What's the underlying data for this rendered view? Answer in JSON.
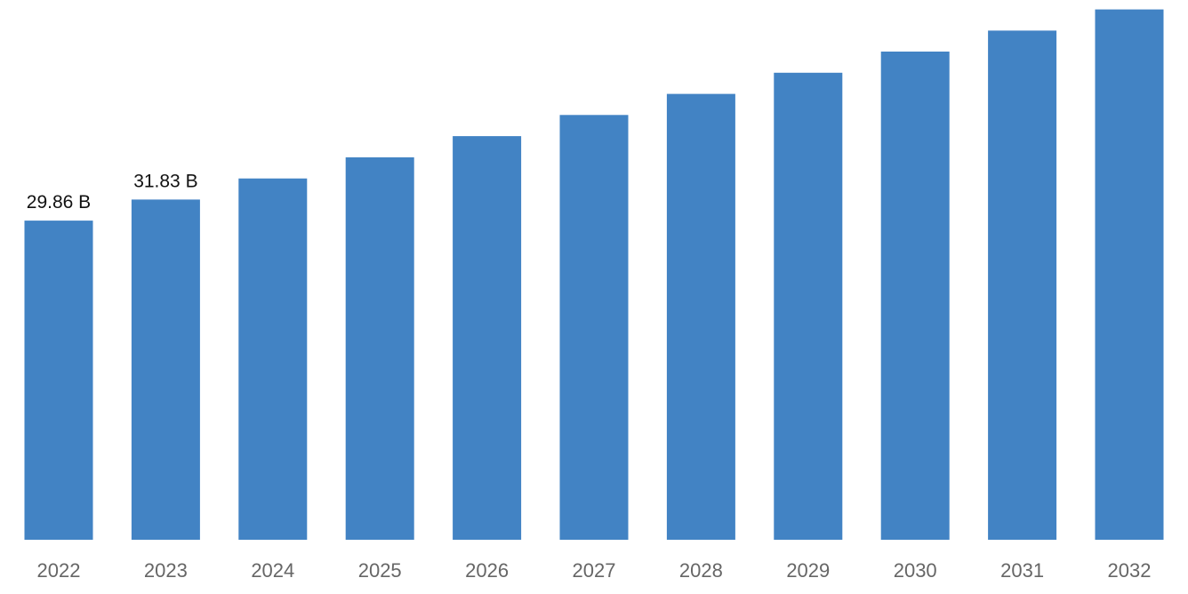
{
  "chart_data": {
    "type": "bar",
    "categories": [
      "2022",
      "2023",
      "2024",
      "2025",
      "2026",
      "2027",
      "2028",
      "2029",
      "2030",
      "2031",
      "2032"
    ],
    "values": [
      29.86,
      31.83,
      33.8,
      35.78,
      37.76,
      39.74,
      41.71,
      43.69,
      45.67,
      47.64,
      49.62
    ],
    "value_labels": [
      "29.86 B",
      "31.83 B",
      "",
      "",
      "",
      "",
      "",
      "",
      "",
      "",
      ""
    ],
    "ylim": [
      0,
      50
    ],
    "grid": false,
    "bar_color": "#4283c4",
    "value_label_color": "#111111",
    "tick_label_color": "#666666"
  }
}
